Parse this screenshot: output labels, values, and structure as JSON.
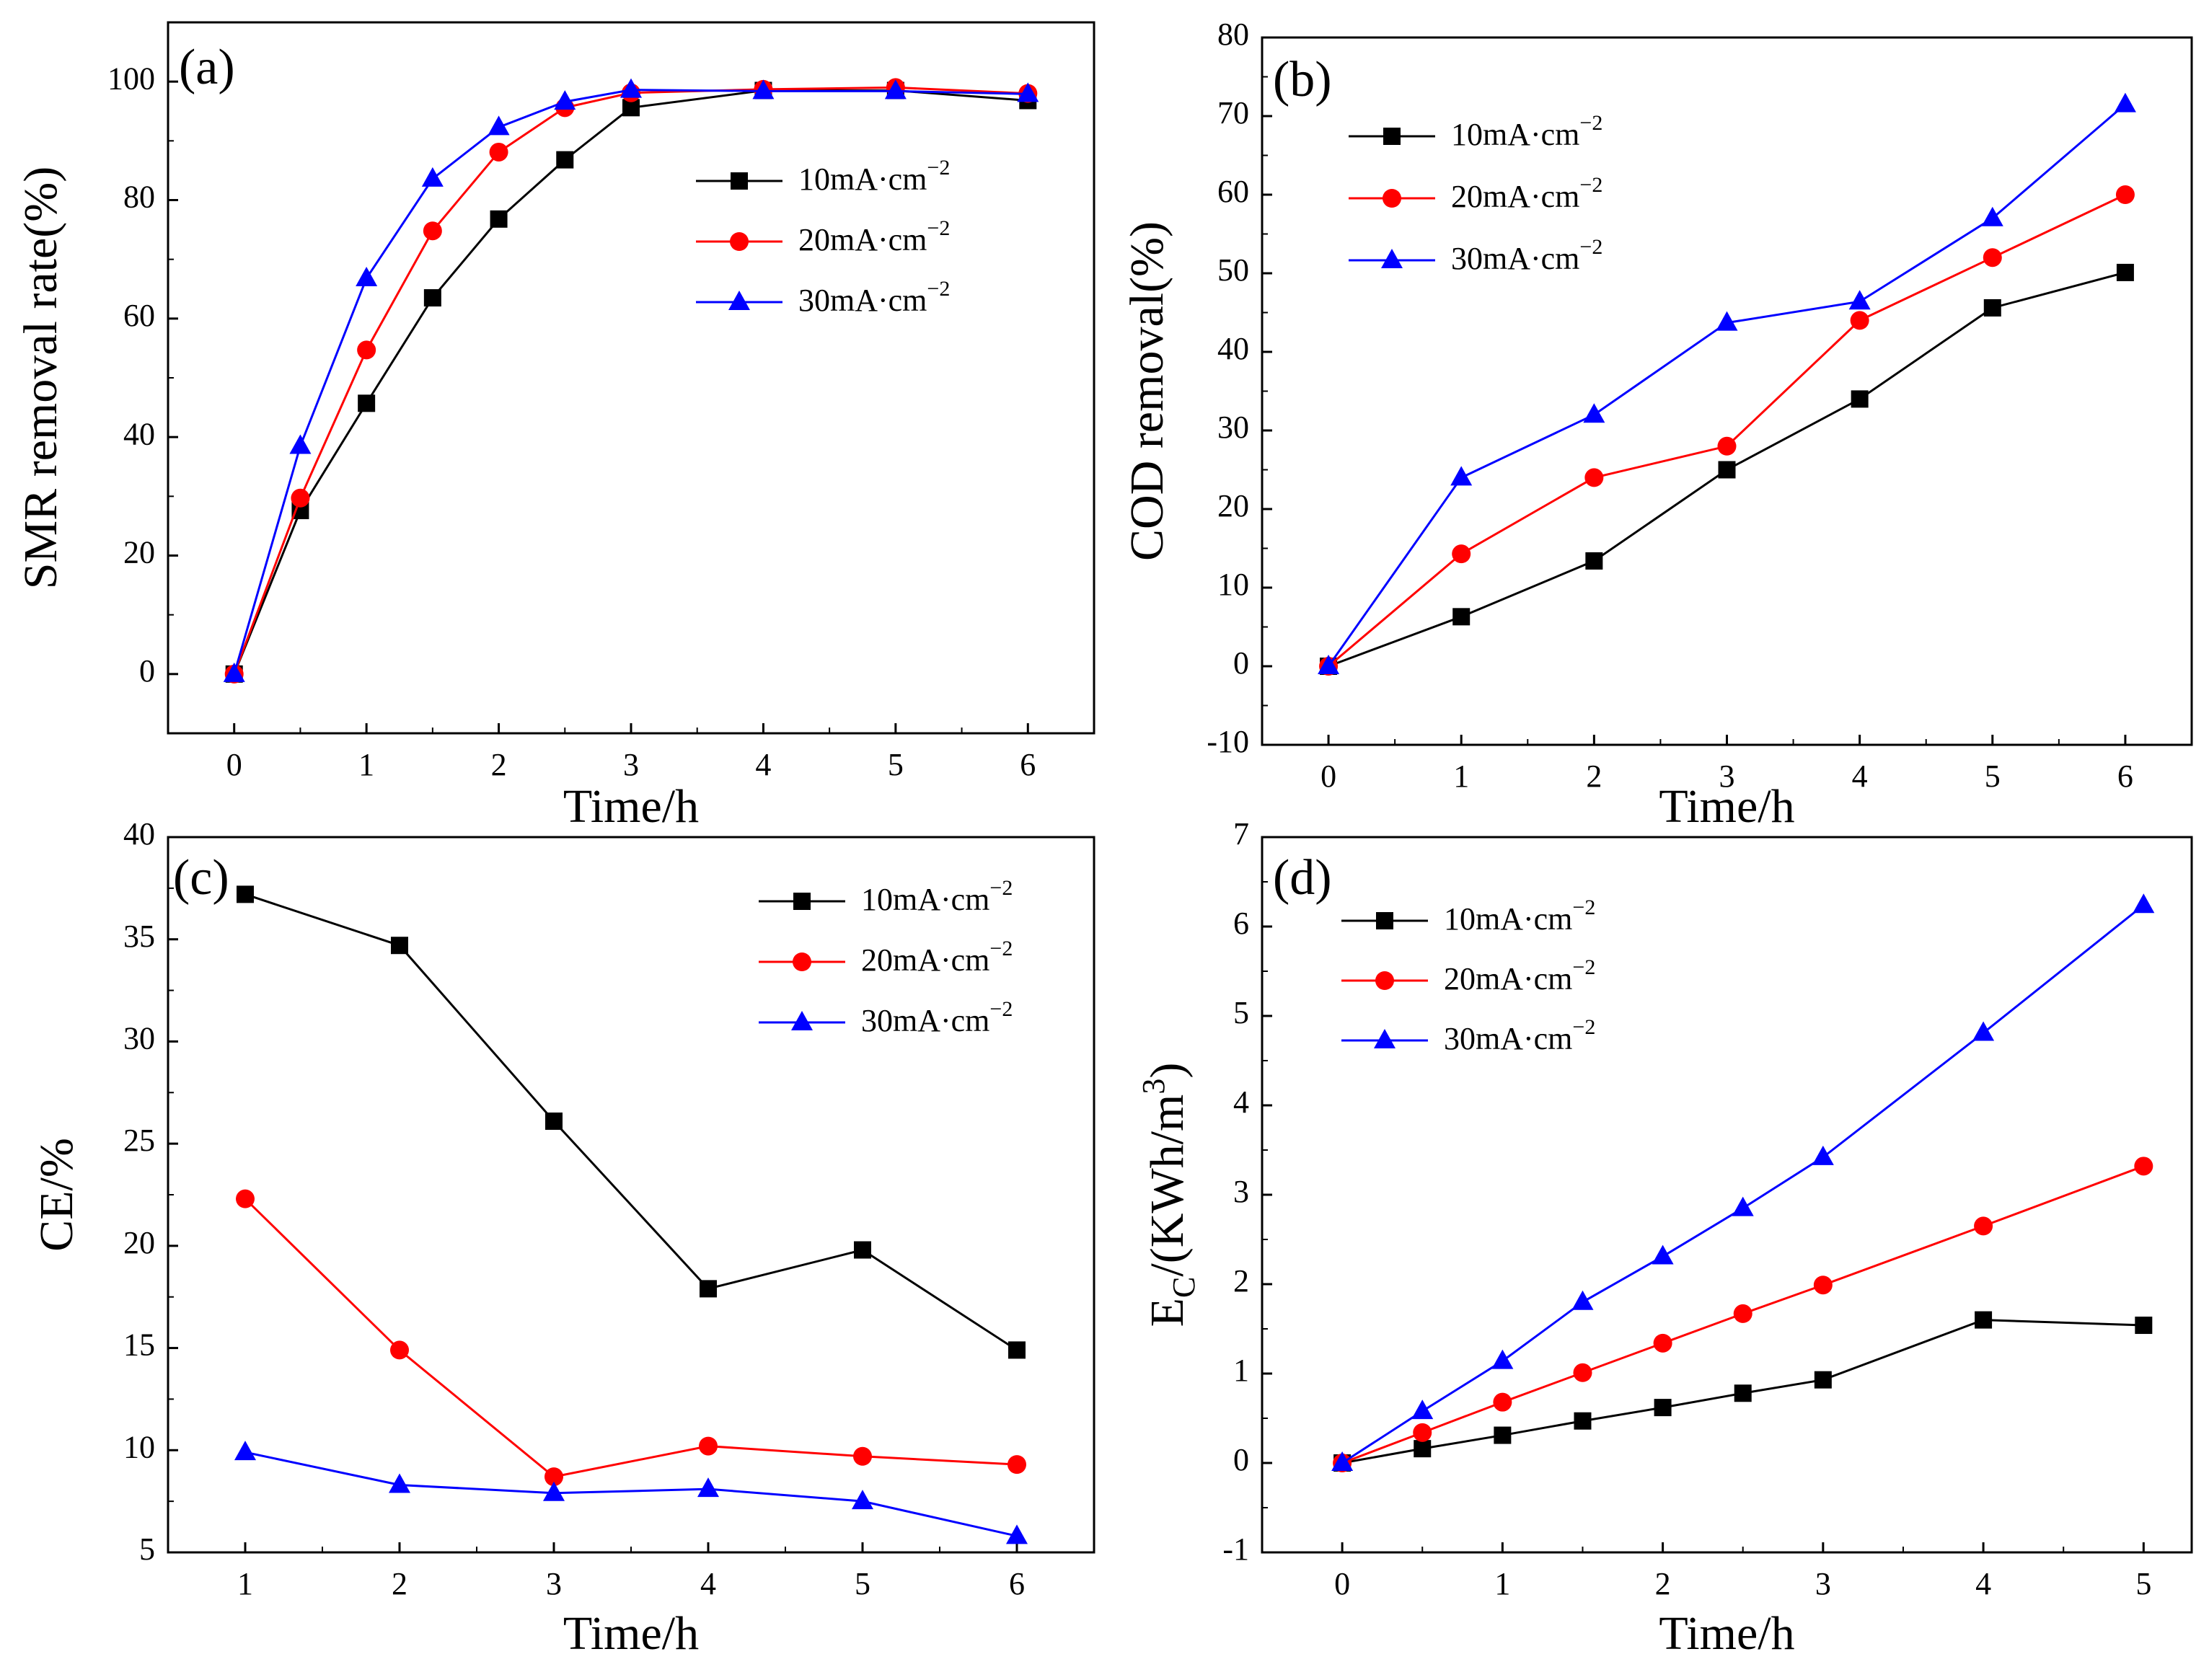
{
  "figure": {
    "panels": [
      {
        "id": "a",
        "label": "(a)",
        "xlabel": "Time/h",
        "ylabel": "SMR removal rate(%)"
      },
      {
        "id": "b",
        "label": "(b)",
        "xlabel": "Time/h",
        "ylabel": "COD removal(%)"
      },
      {
        "id": "c",
        "label": "(c)",
        "xlabel": "Time/h",
        "ylabel": "CE/%"
      },
      {
        "id": "d",
        "label": "(d)",
        "xlabel": "Time/h",
        "ylabel": "E_C/(KWh/m^3)"
      }
    ]
  },
  "chart_data": [
    {
      "type": "line",
      "panel": "(a)",
      "xlabel": "Time/h",
      "ylabel": "SMR removal rate(%)",
      "xlim": [
        -0.5,
        6.5
      ],
      "ylim": [
        -10,
        110
      ],
      "xticks": [
        0,
        1,
        2,
        3,
        4,
        5,
        6
      ],
      "yticks": [
        0,
        20,
        40,
        60,
        80,
        100
      ],
      "legend_position": "center-right",
      "series": [
        {
          "name": "10mA·cm⁻²",
          "color": "#000000",
          "marker": "square",
          "x": [
            0,
            0.5,
            1,
            1.5,
            2,
            2.5,
            3,
            4,
            5,
            6
          ],
          "y": [
            0,
            27.6,
            45.7,
            63.5,
            76.8,
            86.8,
            95.6,
            98.5,
            98.5,
            96.8
          ]
        },
        {
          "name": "20mA·cm⁻²",
          "color": "#ff0000",
          "marker": "circle",
          "x": [
            0,
            0.5,
            1,
            1.5,
            2,
            2.5,
            3,
            4,
            5,
            6
          ],
          "y": [
            0,
            29.7,
            54.7,
            74.8,
            88.1,
            95.6,
            98.1,
            98.7,
            99.0,
            98.0
          ]
        },
        {
          "name": "30mA·cm⁻²",
          "color": "#0000ff",
          "marker": "triangle",
          "x": [
            0,
            0.5,
            1,
            1.5,
            2,
            2.5,
            3,
            4,
            5,
            6
          ],
          "y": [
            0,
            38.5,
            66.8,
            83.6,
            92.3,
            96.6,
            98.6,
            98.4,
            98.4,
            97.9
          ]
        }
      ]
    },
    {
      "type": "line",
      "panel": "(b)",
      "xlabel": "Time/h",
      "ylabel": "COD removal(%)",
      "xlim": [
        -0.5,
        6.5
      ],
      "ylim": [
        -10,
        80
      ],
      "xticks": [
        0,
        1,
        2,
        3,
        4,
        5,
        6
      ],
      "yticks": [
        -10,
        0,
        10,
        20,
        30,
        40,
        50,
        60,
        70,
        80
      ],
      "legend_position": "top-left",
      "series": [
        {
          "name": "10mA·cm⁻²",
          "color": "#000000",
          "marker": "square",
          "x": [
            0,
            1,
            2,
            3,
            4,
            5,
            6
          ],
          "y": [
            0,
            6.3,
            13.4,
            25.0,
            34.0,
            45.6,
            50.1
          ]
        },
        {
          "name": "20mA·cm⁻²",
          "color": "#ff0000",
          "marker": "circle",
          "x": [
            0,
            1,
            2,
            3,
            4,
            5,
            6
          ],
          "y": [
            0,
            14.3,
            24.0,
            28.0,
            44.0,
            52.0,
            60.0
          ]
        },
        {
          "name": "30mA·cm⁻²",
          "color": "#0000ff",
          "marker": "triangle",
          "x": [
            0,
            1,
            2,
            3,
            4,
            5,
            6
          ],
          "y": [
            0,
            24.0,
            32.0,
            43.7,
            46.4,
            57.0,
            71.5
          ]
        }
      ]
    },
    {
      "type": "line",
      "panel": "(c)",
      "xlabel": "Time/h",
      "ylabel": "CE/%",
      "xlim": [
        0.5,
        6.5
      ],
      "ylim": [
        5,
        40
      ],
      "xticks": [
        1,
        2,
        3,
        4,
        5,
        6
      ],
      "yticks": [
        5,
        10,
        15,
        20,
        25,
        30,
        35,
        40
      ],
      "legend_position": "top-right",
      "series": [
        {
          "name": "10mA·cm⁻²",
          "color": "#000000",
          "marker": "square",
          "x": [
            1,
            2,
            3,
            4,
            5,
            6
          ],
          "y": [
            37.2,
            34.7,
            26.1,
            17.9,
            19.8,
            14.9
          ]
        },
        {
          "name": "20mA·cm⁻²",
          "color": "#ff0000",
          "marker": "circle",
          "x": [
            1,
            2,
            3,
            4,
            5,
            6
          ],
          "y": [
            22.3,
            14.9,
            8.7,
            10.2,
            9.7,
            9.3
          ]
        },
        {
          "name": "30mA·cm⁻²",
          "color": "#0000ff",
          "marker": "triangle",
          "x": [
            1,
            2,
            3,
            4,
            5,
            6
          ],
          "y": [
            9.9,
            8.3,
            7.9,
            8.1,
            7.5,
            5.8
          ]
        }
      ]
    },
    {
      "type": "line",
      "panel": "(d)",
      "xlabel": "Time/h",
      "ylabel": "E_C/(KWh/m^3)",
      "xlim": [
        -0.5,
        5.3
      ],
      "ylim": [
        -1,
        7
      ],
      "xticks": [
        0,
        1,
        2,
        3,
        4,
        5
      ],
      "yticks": [
        -1,
        0,
        1,
        2,
        3,
        4,
        5,
        6,
        7
      ],
      "legend_position": "top-left",
      "series": [
        {
          "name": "10mA·cm⁻²",
          "color": "#000000",
          "marker": "square",
          "x": [
            0,
            0.5,
            1,
            1.5,
            2,
            2.5,
            3,
            4,
            5
          ],
          "y": [
            0,
            0.16,
            0.31,
            0.47,
            0.62,
            0.78,
            0.93,
            1.6,
            1.54
          ]
        },
        {
          "name": "20mA·cm⁻²",
          "color": "#ff0000",
          "marker": "circle",
          "x": [
            0,
            0.5,
            1,
            1.5,
            2,
            2.5,
            3,
            4,
            5
          ],
          "y": [
            0,
            0.34,
            0.68,
            1.01,
            1.34,
            1.67,
            1.99,
            2.65,
            3.32
          ]
        },
        {
          "name": "30mA·cm⁻²",
          "color": "#0000ff",
          "marker": "triangle",
          "x": [
            0,
            0.5,
            1,
            1.5,
            2,
            2.5,
            3,
            4,
            5
          ],
          "y": [
            0,
            0.58,
            1.14,
            1.8,
            2.31,
            2.85,
            3.42,
            4.81,
            6.24
          ]
        }
      ]
    }
  ]
}
